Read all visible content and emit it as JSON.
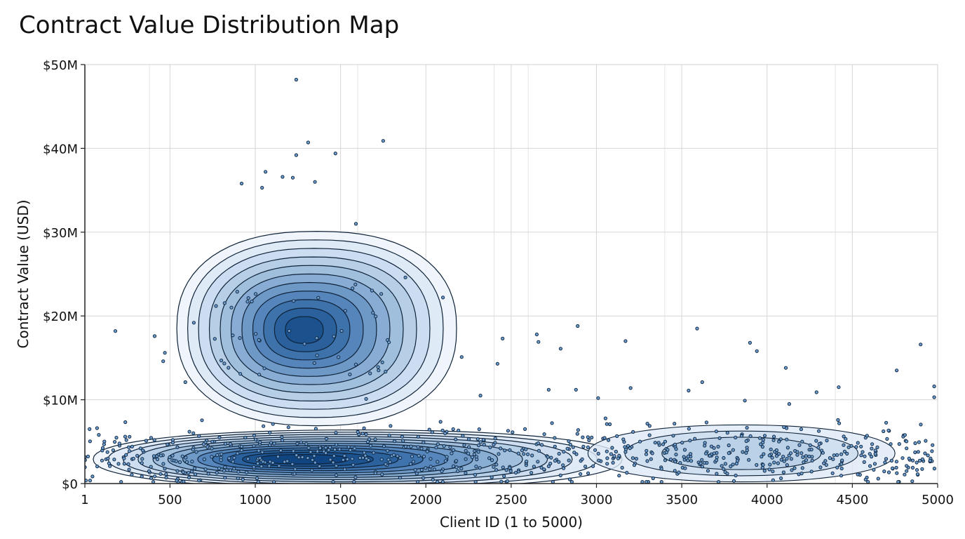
{
  "chart_data": {
    "type": "scatter",
    "title": "Contract Value Distribution Map",
    "xlabel": "Client ID (1 to 5000)",
    "ylabel": "Contract Value (USD)",
    "xlim": [
      1,
      5000
    ],
    "ylim": [
      0,
      50
    ],
    "x_ticks": [
      {
        "value": 1,
        "label": "1"
      },
      {
        "value": 500,
        "label": "500"
      },
      {
        "value": 1000,
        "label": "1000"
      },
      {
        "value": 1500,
        "label": "1500"
      },
      {
        "value": 2000,
        "label": "2000"
      },
      {
        "value": 2500,
        "label": "2500"
      },
      {
        "value": 3000,
        "label": "3000"
      },
      {
        "value": 3500,
        "label": "3500"
      },
      {
        "value": 4000,
        "label": "4000"
      },
      {
        "value": 4500,
        "label": "4500"
      },
      {
        "value": 5000,
        "label": "5000"
      }
    ],
    "y_ticks": [
      {
        "value": 0,
        "label": "$0"
      },
      {
        "value": 10,
        "label": "$10M"
      },
      {
        "value": 20,
        "label": "$20M"
      },
      {
        "value": 30,
        "label": "$30M"
      },
      {
        "value": 40,
        "label": "$40M"
      },
      {
        "value": 50,
        "label": "$50M"
      }
    ],
    "y_unit": "millions USD",
    "grid": true,
    "overlay": "density contours (blue fill)",
    "colors": {
      "points": "#1c2e4a",
      "contour_line": "#0e2238",
      "fill_light": "#eaf2fa",
      "fill_dark": "#084a8c"
    },
    "outliers": [
      [
        1240,
        48.2
      ],
      [
        1310,
        40.7
      ],
      [
        1750,
        40.9
      ],
      [
        1240,
        39.2
      ],
      [
        1470,
        39.4
      ],
      [
        1350,
        36.0
      ],
      [
        1220,
        36.5
      ],
      [
        1160,
        36.6
      ],
      [
        1060,
        37.2
      ],
      [
        1040,
        35.3
      ],
      [
        920,
        35.8
      ],
      [
        1590,
        31.0
      ],
      [
        1880,
        24.6
      ],
      [
        2100,
        22.2
      ],
      [
        180,
        18.2
      ],
      [
        410,
        17.6
      ],
      [
        470,
        15.6
      ],
      [
        460,
        14.6
      ],
      [
        2650,
        17.8
      ],
      [
        2660,
        16.9
      ],
      [
        2890,
        18.8
      ],
      [
        2790,
        16.1
      ],
      [
        3170,
        17.0
      ],
      [
        3590,
        18.5
      ],
      [
        3900,
        16.8
      ],
      [
        3940,
        15.8
      ],
      [
        4110,
        13.8
      ],
      [
        4760,
        13.5
      ],
      [
        4900,
        16.6
      ],
      [
        4980,
        11.6
      ],
      [
        4980,
        10.3
      ],
      [
        4420,
        11.5
      ],
      [
        4290,
        10.9
      ],
      [
        4130,
        9.5
      ],
      [
        3870,
        9.9
      ],
      [
        3620,
        12.1
      ],
      [
        3540,
        11.1
      ],
      [
        3200,
        11.4
      ],
      [
        3010,
        10.2
      ],
      [
        2880,
        11.2
      ],
      [
        2720,
        11.2
      ],
      [
        2320,
        10.5
      ],
      [
        2420,
        14.3
      ],
      [
        2450,
        17.3
      ],
      [
        2210,
        15.1
      ],
      [
        590,
        12.1
      ],
      [
        640,
        19.2
      ],
      [
        1720,
        13.9
      ],
      [
        1650,
        10.1
      ]
    ],
    "dense_region_points": 800
  }
}
